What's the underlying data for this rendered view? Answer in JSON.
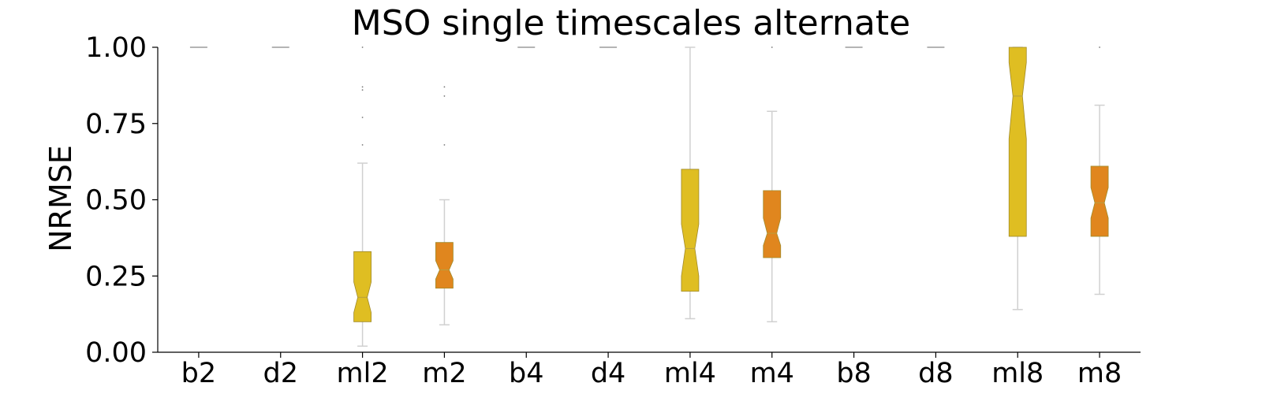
{
  "colors": {
    "yellow": "#DFBE22",
    "orange": "#E0861E"
  },
  "chart_data": {
    "type": "boxplot",
    "title": "MSO single timescales alternate",
    "xlabel": "",
    "ylabel": "NRMSE",
    "ylim": [
      0,
      1
    ],
    "yticks": [
      0,
      0.25,
      0.5,
      0.75,
      1.0
    ],
    "ytick_labels": [
      "0.00",
      "0.25",
      "0.50",
      "0.75",
      "1.00"
    ],
    "notched": true,
    "grid": false,
    "categories": [
      "b2",
      "d2",
      "ml2",
      "m2",
      "b4",
      "d4",
      "ml4",
      "m4",
      "b8",
      "d8",
      "ml8",
      "m8"
    ],
    "boxes": [
      {
        "label": "b2",
        "color": "yellow",
        "whislo": 1.0,
        "q1": 1.0,
        "med": 1.0,
        "q3": 1.0,
        "whishi": 1.0,
        "notch_lo": 1.0,
        "notch_hi": 1.0,
        "fliers": []
      },
      {
        "label": "d2",
        "color": "orange",
        "whislo": 1.0,
        "q1": 1.0,
        "med": 1.0,
        "q3": 1.0,
        "whishi": 1.0,
        "notch_lo": 1.0,
        "notch_hi": 1.0,
        "fliers": []
      },
      {
        "label": "ml2",
        "color": "yellow",
        "whislo": 0.02,
        "q1": 0.1,
        "med": 0.18,
        "q3": 0.33,
        "whishi": 0.62,
        "notch_lo": 0.13,
        "notch_hi": 0.23,
        "fliers": [
          0.68,
          0.77,
          0.86,
          0.87,
          1.0
        ]
      },
      {
        "label": "m2",
        "color": "orange",
        "whislo": 0.09,
        "q1": 0.21,
        "med": 0.27,
        "q3": 0.36,
        "whishi": 0.5,
        "notch_lo": 0.24,
        "notch_hi": 0.3,
        "fliers": [
          0.68,
          0.84,
          0.87
        ]
      },
      {
        "label": "b4",
        "color": "yellow",
        "whislo": 1.0,
        "q1": 1.0,
        "med": 1.0,
        "q3": 1.0,
        "whishi": 1.0,
        "notch_lo": 1.0,
        "notch_hi": 1.0,
        "fliers": []
      },
      {
        "label": "d4",
        "color": "orange",
        "whislo": 1.0,
        "q1": 1.0,
        "med": 1.0,
        "q3": 1.0,
        "whishi": 1.0,
        "notch_lo": 1.0,
        "notch_hi": 1.0,
        "fliers": []
      },
      {
        "label": "ml4",
        "color": "yellow",
        "whislo": 0.11,
        "q1": 0.2,
        "med": 0.34,
        "q3": 0.6,
        "whishi": 1.0,
        "notch_lo": 0.25,
        "notch_hi": 0.42,
        "fliers": []
      },
      {
        "label": "m4",
        "color": "orange",
        "whislo": 0.1,
        "q1": 0.31,
        "med": 0.39,
        "q3": 0.53,
        "whishi": 0.79,
        "notch_lo": 0.35,
        "notch_hi": 0.44,
        "fliers": [
          1.0
        ]
      },
      {
        "label": "b8",
        "color": "yellow",
        "whislo": 1.0,
        "q1": 1.0,
        "med": 1.0,
        "q3": 1.0,
        "whishi": 1.0,
        "notch_lo": 1.0,
        "notch_hi": 1.0,
        "fliers": []
      },
      {
        "label": "d8",
        "color": "orange",
        "whislo": 1.0,
        "q1": 1.0,
        "med": 1.0,
        "q3": 1.0,
        "whishi": 1.0,
        "notch_lo": 1.0,
        "notch_hi": 1.0,
        "fliers": []
      },
      {
        "label": "ml8",
        "color": "yellow",
        "whislo": 0.14,
        "q1": 0.38,
        "med": 0.84,
        "q3": 1.0,
        "whishi": 1.0,
        "notch_lo": 0.7,
        "notch_hi": 0.95,
        "fliers": []
      },
      {
        "label": "m8",
        "color": "orange",
        "whislo": 0.19,
        "q1": 0.38,
        "med": 0.49,
        "q3": 0.61,
        "whishi": 0.81,
        "notch_lo": 0.44,
        "notch_hi": 0.54,
        "fliers": [
          1.0
        ]
      }
    ]
  }
}
